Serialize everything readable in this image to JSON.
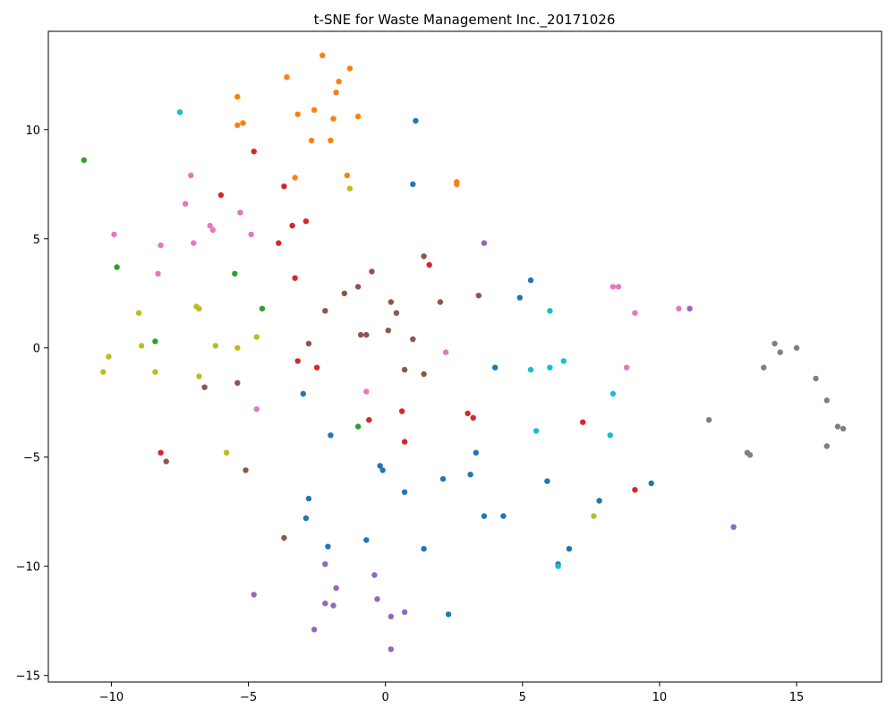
{
  "chart_data": {
    "type": "scatter",
    "title": "t-SNE for Waste Management Inc._20171026",
    "xlabel": "",
    "ylabel": "",
    "xlim": [
      -12.3,
      18.1
    ],
    "ylim": [
      -15.3,
      14.5
    ],
    "x_ticks": [
      -10,
      -5,
      0,
      5,
      10,
      15
    ],
    "y_ticks": [
      -15,
      -10,
      -5,
      0,
      5,
      10
    ],
    "x_tick_labels": [
      "−10",
      "−5",
      "0",
      "5",
      "10",
      "15"
    ],
    "y_tick_labels": [
      "−15",
      "−10",
      "−5",
      "0",
      "5",
      "10"
    ],
    "grid": false,
    "legend": "none",
    "series": [
      {
        "color": "#1f77b4",
        "points": [
          [
            1.1,
            10.4
          ],
          [
            1.0,
            7.5
          ],
          [
            5.3,
            3.1
          ],
          [
            4.9,
            2.3
          ],
          [
            4.0,
            -0.9
          ],
          [
            -3.0,
            -2.1
          ],
          [
            -2.0,
            -4.0
          ],
          [
            -0.2,
            -5.4
          ],
          [
            -0.1,
            -5.6
          ],
          [
            0.7,
            -6.6
          ],
          [
            2.1,
            -6.0
          ],
          [
            3.1,
            -5.8
          ],
          [
            3.3,
            -4.8
          ],
          [
            5.9,
            -6.1
          ],
          [
            7.8,
            -7.0
          ],
          [
            9.7,
            -6.2
          ],
          [
            3.6,
            -7.7
          ],
          [
            4.3,
            -7.7
          ],
          [
            -2.8,
            -6.9
          ],
          [
            -2.9,
            -7.8
          ],
          [
            -2.1,
            -9.1
          ],
          [
            -0.7,
            -8.8
          ],
          [
            1.4,
            -9.2
          ],
          [
            6.7,
            -9.2
          ],
          [
            6.3,
            -9.9
          ],
          [
            2.3,
            -12.2
          ]
        ]
      },
      {
        "color": "#ff7f0e",
        "points": [
          [
            -2.3,
            13.4
          ],
          [
            -1.3,
            12.8
          ],
          [
            -3.6,
            12.4
          ],
          [
            -1.7,
            12.2
          ],
          [
            -1.8,
            11.7
          ],
          [
            -5.4,
            11.5
          ],
          [
            -2.6,
            10.9
          ],
          [
            -3.2,
            10.7
          ],
          [
            -1.0,
            10.6
          ],
          [
            -1.9,
            10.5
          ],
          [
            -5.2,
            10.3
          ],
          [
            -5.4,
            10.2
          ],
          [
            -2.7,
            9.5
          ],
          [
            -2.0,
            9.5
          ],
          [
            -1.4,
            7.9
          ],
          [
            -3.3,
            7.8
          ],
          [
            2.6,
            7.6
          ],
          [
            2.6,
            7.5
          ]
        ]
      },
      {
        "color": "#2ca02c",
        "points": [
          [
            -11.0,
            8.6
          ],
          [
            -9.8,
            3.7
          ],
          [
            -5.5,
            3.4
          ],
          [
            -4.5,
            1.8
          ],
          [
            -8.4,
            0.3
          ],
          [
            -1.0,
            -3.6
          ]
        ]
      },
      {
        "color": "#d62728",
        "points": [
          [
            -4.8,
            9.0
          ],
          [
            -6.0,
            7.0
          ],
          [
            -3.7,
            7.4
          ],
          [
            -2.9,
            5.8
          ],
          [
            -3.4,
            5.6
          ],
          [
            -3.9,
            4.8
          ],
          [
            -3.3,
            3.2
          ],
          [
            1.6,
            3.8
          ],
          [
            -3.2,
            -0.6
          ],
          [
            -2.5,
            -0.9
          ],
          [
            -0.6,
            -3.3
          ],
          [
            0.6,
            -2.9
          ],
          [
            3.0,
            -3.0
          ],
          [
            3.2,
            -3.2
          ],
          [
            7.2,
            -3.4
          ],
          [
            0.7,
            -4.3
          ],
          [
            -8.2,
            -4.8
          ],
          [
            9.1,
            -6.5
          ]
        ]
      },
      {
        "color": "#9467bd",
        "points": [
          [
            3.6,
            4.8
          ],
          [
            11.1,
            1.8
          ],
          [
            12.7,
            -8.2
          ],
          [
            -2.2,
            -9.9
          ],
          [
            -1.8,
            -11.0
          ],
          [
            -0.4,
            -10.4
          ],
          [
            -0.3,
            -11.5
          ],
          [
            -2.2,
            -11.7
          ],
          [
            -1.9,
            -11.8
          ],
          [
            0.7,
            -12.1
          ],
          [
            0.2,
            -12.3
          ],
          [
            -4.8,
            -11.3
          ],
          [
            -2.6,
            -12.9
          ],
          [
            0.2,
            -13.8
          ]
        ]
      },
      {
        "color": "#8c564b",
        "points": [
          [
            1.4,
            4.2
          ],
          [
            -0.5,
            3.5
          ],
          [
            3.4,
            2.4
          ],
          [
            -1.0,
            2.8
          ],
          [
            -1.5,
            2.5
          ],
          [
            0.2,
            2.1
          ],
          [
            2.0,
            2.1
          ],
          [
            -2.2,
            1.7
          ],
          [
            0.4,
            1.6
          ],
          [
            -0.9,
            0.6
          ],
          [
            -0.7,
            0.6
          ],
          [
            0.1,
            0.8
          ],
          [
            1.0,
            0.4
          ],
          [
            -2.8,
            0.2
          ],
          [
            0.7,
            -1.0
          ],
          [
            1.4,
            -1.2
          ],
          [
            -5.4,
            -1.6
          ],
          [
            -6.6,
            -1.8
          ],
          [
            -8.0,
            -5.2
          ],
          [
            -5.1,
            -5.6
          ],
          [
            -3.7,
            -8.7
          ]
        ]
      },
      {
        "color": "#e377c2",
        "points": [
          [
            -7.1,
            7.9
          ],
          [
            -7.3,
            6.6
          ],
          [
            -5.3,
            6.2
          ],
          [
            -6.4,
            5.6
          ],
          [
            -6.3,
            5.4
          ],
          [
            -9.9,
            5.2
          ],
          [
            -4.9,
            5.2
          ],
          [
            -8.2,
            4.7
          ],
          [
            -7.0,
            4.8
          ],
          [
            -8.3,
            3.4
          ],
          [
            8.3,
            2.8
          ],
          [
            8.5,
            2.8
          ],
          [
            10.7,
            1.8
          ],
          [
            9.1,
            1.6
          ],
          [
            2.2,
            -0.2
          ],
          [
            8.8,
            -0.9
          ],
          [
            -0.7,
            -2.0
          ],
          [
            -4.7,
            -2.8
          ]
        ]
      },
      {
        "color": "#7f7f7f",
        "points": [
          [
            14.2,
            0.2
          ],
          [
            15.0,
            0.0
          ],
          [
            14.4,
            -0.2
          ],
          [
            13.8,
            -0.9
          ],
          [
            15.7,
            -1.4
          ],
          [
            16.1,
            -2.4
          ],
          [
            11.8,
            -3.3
          ],
          [
            16.5,
            -3.6
          ],
          [
            16.7,
            -3.7
          ],
          [
            16.1,
            -4.5
          ],
          [
            13.2,
            -4.8
          ],
          [
            13.3,
            -4.9
          ]
        ]
      },
      {
        "color": "#bcbd22",
        "points": [
          [
            -1.3,
            7.3
          ],
          [
            -9.0,
            1.6
          ],
          [
            -6.9,
            1.9
          ],
          [
            -6.8,
            1.8
          ],
          [
            -4.7,
            0.5
          ],
          [
            -8.9,
            0.1
          ],
          [
            -6.2,
            0.1
          ],
          [
            -5.4,
            0.0
          ],
          [
            -10.1,
            -0.4
          ],
          [
            -10.3,
            -1.1
          ],
          [
            -8.4,
            -1.1
          ],
          [
            -6.8,
            -1.3
          ],
          [
            -5.8,
            -4.8
          ],
          [
            7.6,
            -7.7
          ]
        ]
      },
      {
        "color": "#17becf",
        "points": [
          [
            -7.5,
            10.8
          ],
          [
            6.0,
            1.7
          ],
          [
            5.3,
            -1.0
          ],
          [
            6.0,
            -0.9
          ],
          [
            6.5,
            -0.6
          ],
          [
            8.3,
            -2.1
          ],
          [
            5.5,
            -3.8
          ],
          [
            8.2,
            -4.0
          ],
          [
            6.3,
            -10.0
          ]
        ]
      }
    ]
  }
}
